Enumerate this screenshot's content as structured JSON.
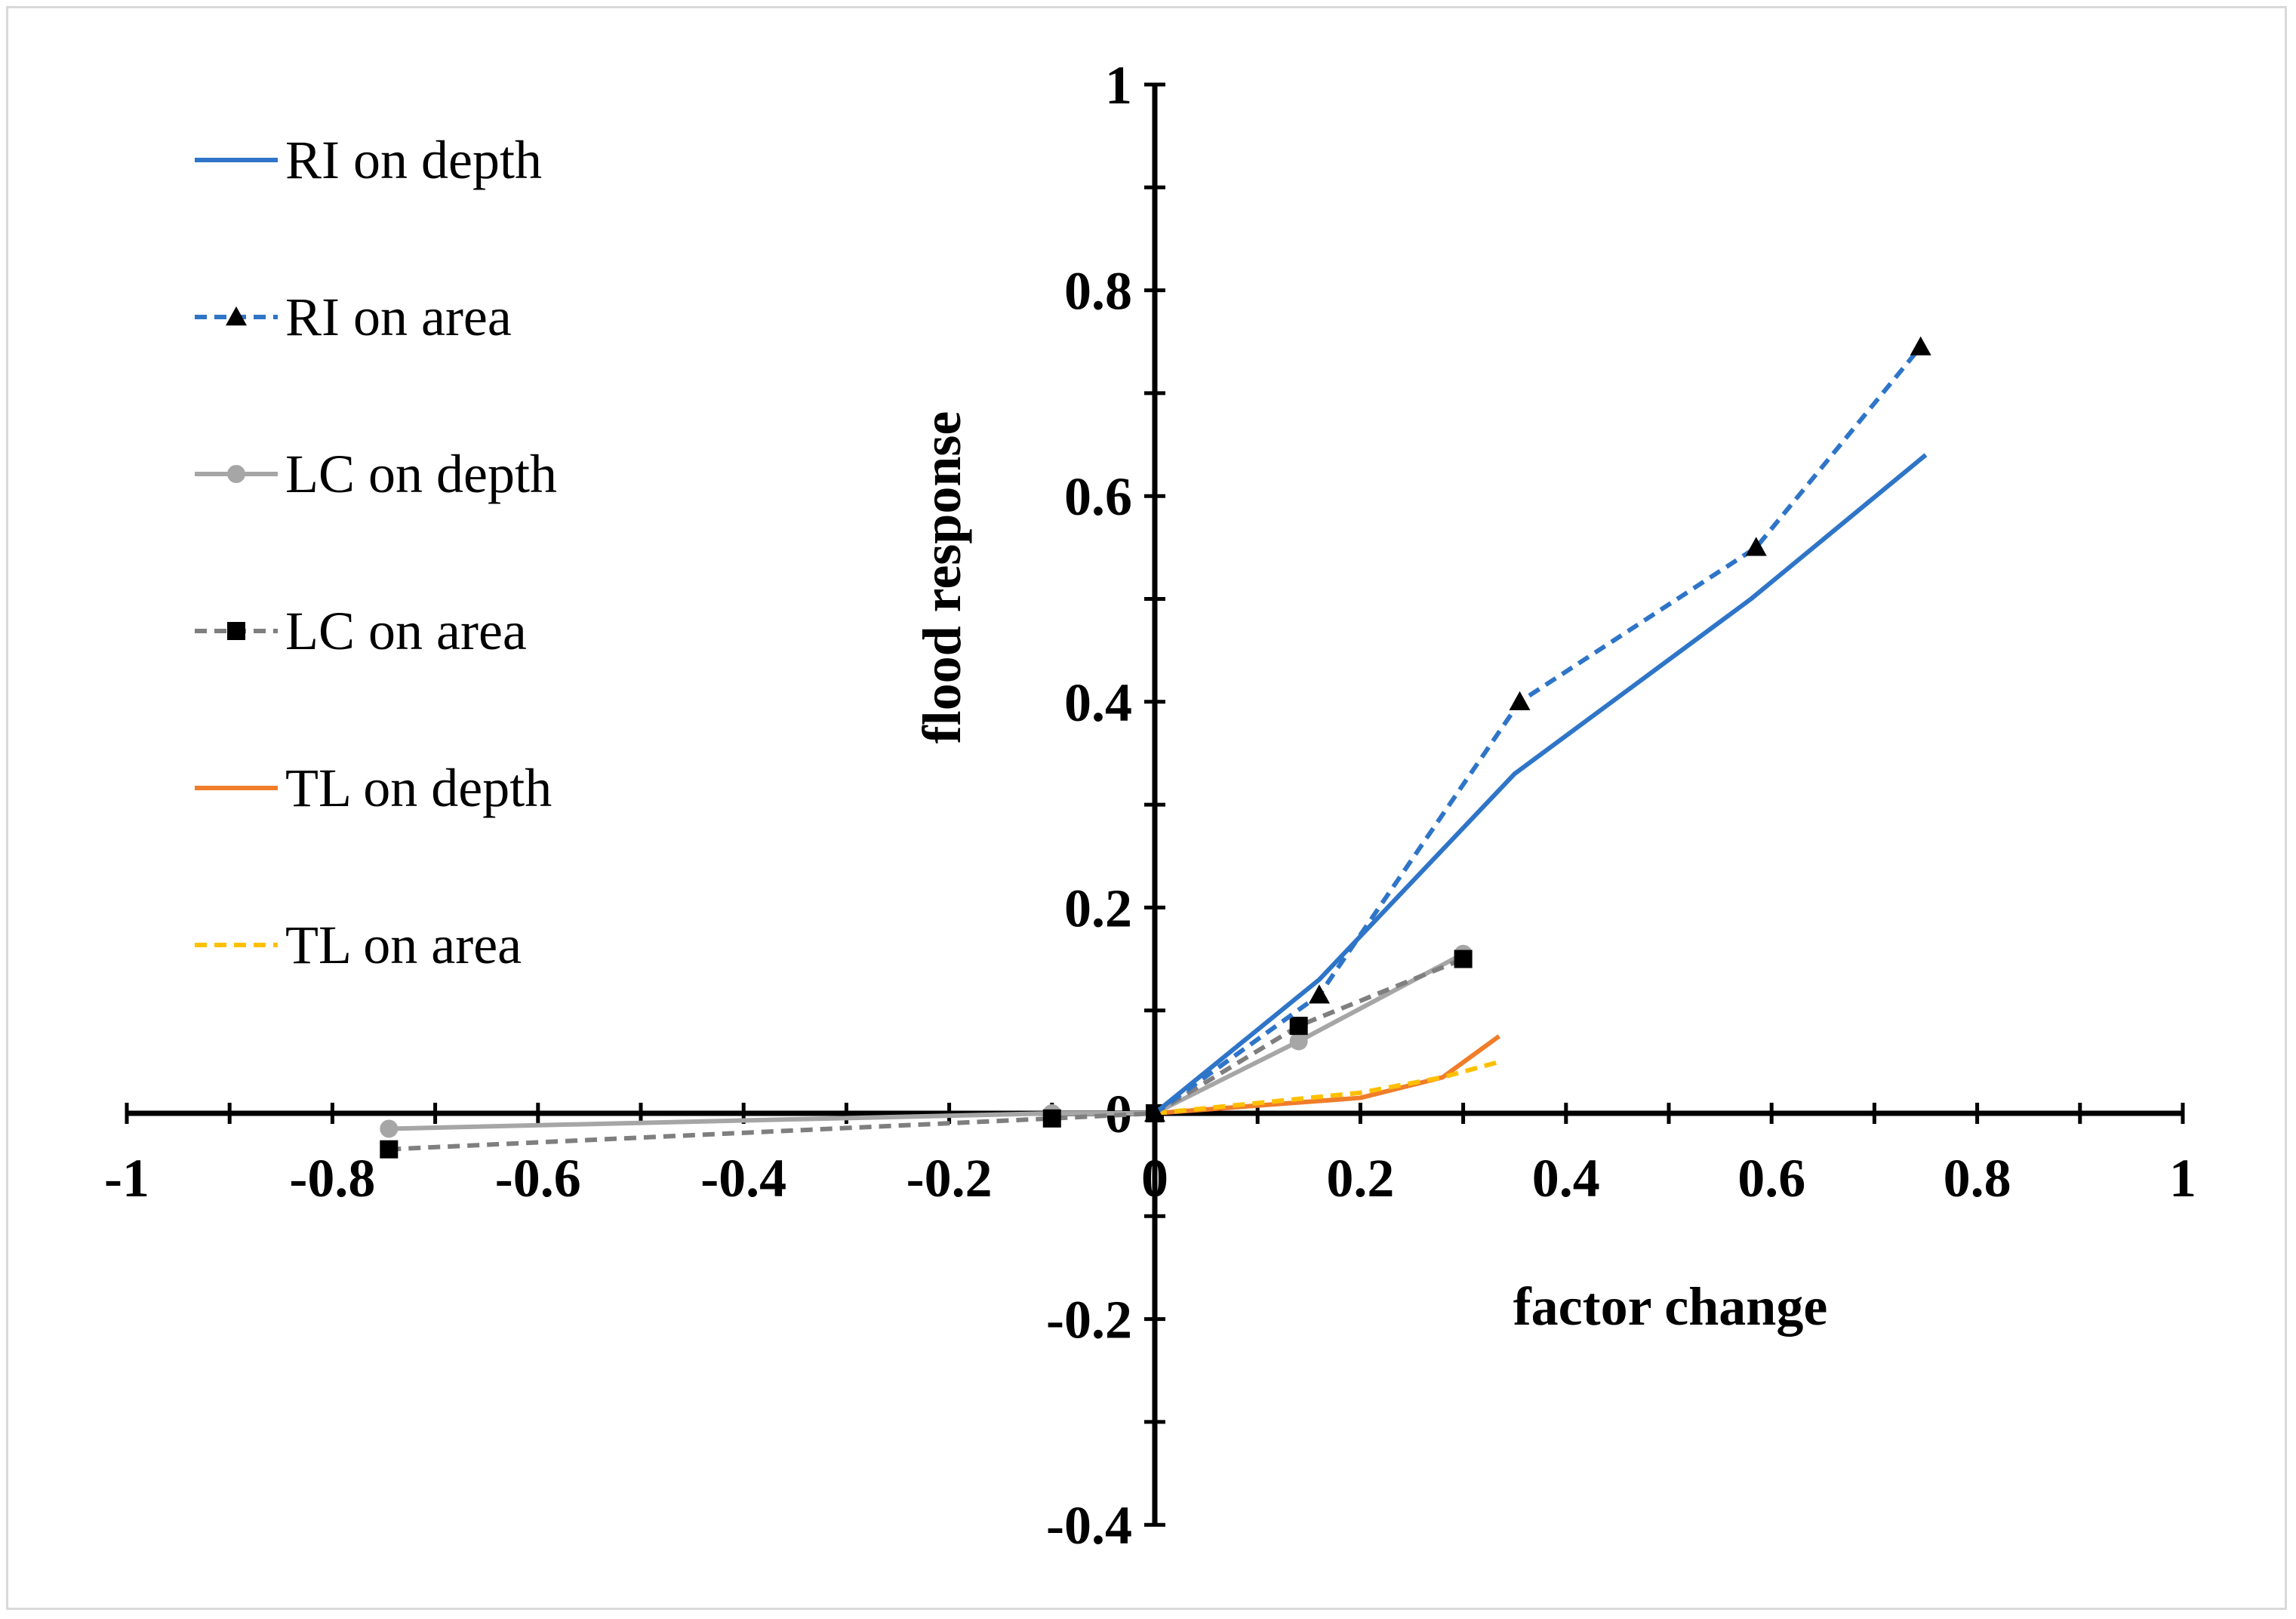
{
  "chart_data": {
    "type": "line",
    "title": "",
    "xlabel": "factor change",
    "ylabel": "flood response",
    "xlim": [
      -1,
      1
    ],
    "ylim": [
      -0.4,
      1
    ],
    "xticks": [
      -1,
      -0.8,
      -0.6,
      -0.4,
      -0.2,
      0,
      0.2,
      0.4,
      0.6,
      0.8,
      1
    ],
    "xtick_labels": [
      "-1",
      "-0.8",
      "-0.6",
      "-0.4",
      "-0.2",
      "0",
      "0.2",
      "0.4",
      "0.6",
      "0.8",
      "1"
    ],
    "yticks": [
      -0.4,
      -0.2,
      0,
      0.2,
      0.4,
      0.6,
      0.8,
      1
    ],
    "ytick_labels": [
      "-0.4",
      "-0.2",
      "0",
      "0.2",
      "0.4",
      "0.6",
      "0.8",
      "1"
    ],
    "grid": false,
    "legend_position": "top-left",
    "series": [
      {
        "name": "RI on depth",
        "color": "#2E75C8",
        "dash": "solid",
        "marker": "none",
        "x": [
          0,
          0.16,
          0.35,
          0.58,
          0.75
        ],
        "y": [
          0,
          0.13,
          0.33,
          0.5,
          0.64
        ]
      },
      {
        "name": "RI on area",
        "color": "#2E75C8",
        "dash": "dashed",
        "marker": "triangle",
        "x": [
          0,
          0.16,
          0.355,
          0.585,
          0.745
        ],
        "y": [
          0,
          0.115,
          0.4,
          0.55,
          0.745
        ]
      },
      {
        "name": "LC on depth",
        "color": "#A6A6A6",
        "dash": "solid",
        "marker": "circle",
        "x": [
          -0.745,
          -0.1,
          0,
          0.14,
          0.3
        ],
        "y": [
          -0.015,
          0.0,
          0,
          0.07,
          0.155
        ]
      },
      {
        "name": "LC on area",
        "color": "#7F7F7F",
        "dash": "dashed",
        "marker": "square",
        "x": [
          -0.745,
          -0.1,
          0,
          0.14,
          0.3
        ],
        "y": [
          -0.035,
          -0.005,
          0,
          0.085,
          0.15
        ]
      },
      {
        "name": "TL on depth",
        "color": "#F07D2A",
        "dash": "solid",
        "marker": "none",
        "x": [
          0,
          0.2,
          0.28,
          0.335
        ],
        "y": [
          0,
          0.015,
          0.035,
          0.075
        ]
      },
      {
        "name": "TL on area",
        "color": "#FFC000",
        "dash": "dashed",
        "marker": "none",
        "x": [
          0,
          0.2,
          0.28,
          0.335
        ],
        "y": [
          0,
          0.02,
          0.035,
          0.05
        ]
      }
    ]
  }
}
